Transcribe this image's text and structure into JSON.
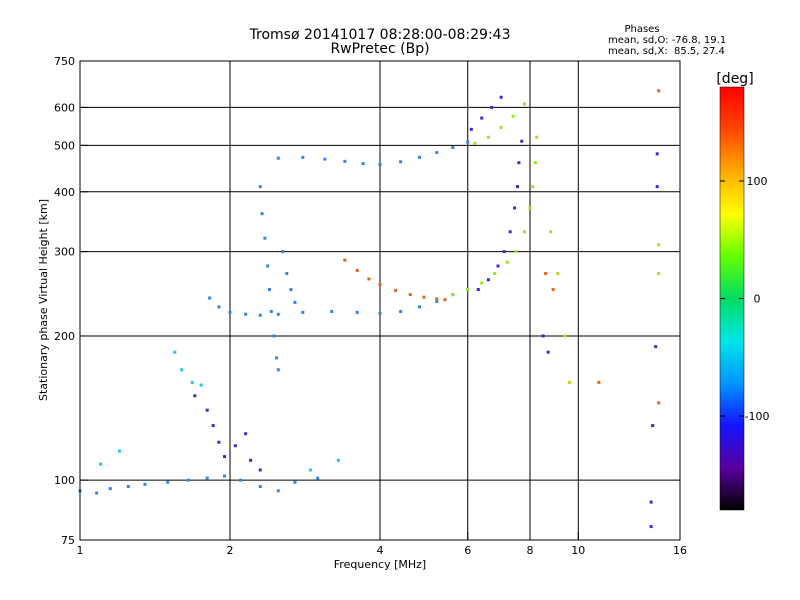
{
  "chart_data": {
    "type": "scatter",
    "title": "Tromsø 20141017 08:28:00-08:29:43",
    "subtitle": "RwPretec (Bp)",
    "xlabel": "Frequency [MHz]",
    "ylabel": "Stationary phase Virtual Height [km]",
    "x_scale": "log2",
    "y_scale": "log",
    "xlim": [
      1,
      16
    ],
    "ylim": [
      75,
      750
    ],
    "x_ticks": [
      "1",
      "2",
      "4",
      "6",
      "8",
      "10",
      "16"
    ],
    "y_ticks": [
      "75",
      "100",
      "200",
      "300",
      "400",
      "500",
      "600",
      "750"
    ],
    "grid": true,
    "stats_lines": [
      "Phases",
      "mean, sd,O: -76.8, 19.1",
      "mean, sd,X:  85.5, 27.4"
    ],
    "colorbar": {
      "label": "[deg]",
      "range": [
        -180,
        180
      ],
      "ticks": [
        "100",
        "0",
        "-100"
      ],
      "colors": [
        "#000000",
        "#5a00a0",
        "#1414ff",
        "#0096ff",
        "#00e6e6",
        "#00dc64",
        "#64ff00",
        "#ffff00",
        "#ffaa00",
        "#ff4600",
        "#ff0000"
      ]
    },
    "series": [
      {
        "name": "",
        "color": "#2f86e6",
        "points": [
          [
            1.0,
            95
          ],
          [
            1.08,
            94
          ],
          [
            1.15,
            96
          ],
          [
            1.25,
            97
          ],
          [
            1.35,
            98
          ],
          [
            1.5,
            99
          ],
          [
            1.65,
            100
          ],
          [
            1.8,
            101
          ],
          [
            1.95,
            102
          ],
          [
            2.1,
            100
          ],
          [
            2.3,
            97
          ],
          [
            2.5,
            95
          ],
          [
            2.7,
            99
          ],
          [
            3.0,
            101
          ]
        ]
      },
      {
        "name": "",
        "color": "#2f86e6",
        "points": [
          [
            1.82,
            240
          ],
          [
            1.9,
            230
          ],
          [
            2.0,
            224
          ],
          [
            2.15,
            222
          ],
          [
            2.3,
            221
          ],
          [
            2.5,
            222
          ],
          [
            2.8,
            224
          ],
          [
            3.2,
            225
          ],
          [
            3.6,
            224
          ],
          [
            4.0,
            223
          ],
          [
            4.4,
            225
          ],
          [
            4.8,
            230
          ],
          [
            5.2,
            236
          ],
          [
            5.6,
            244
          ]
        ]
      },
      {
        "name": "",
        "color": "#e0651e",
        "points": [
          [
            3.4,
            288
          ],
          [
            3.6,
            274
          ],
          [
            3.8,
            263
          ],
          [
            4.0,
            256
          ],
          [
            4.3,
            249
          ],
          [
            4.6,
            244
          ],
          [
            4.9,
            241
          ],
          [
            5.2,
            239
          ],
          [
            5.4,
            238
          ]
        ]
      },
      {
        "name": "",
        "color": "#9be61e",
        "points": [
          [
            5.6,
            244
          ],
          [
            6.0,
            250
          ],
          [
            6.4,
            258
          ],
          [
            6.8,
            270
          ],
          [
            7.2,
            285
          ],
          [
            7.5,
            300
          ],
          [
            7.8,
            330
          ],
          [
            8.0,
            370
          ],
          [
            8.1,
            410
          ],
          [
            8.2,
            460
          ],
          [
            8.25,
            520
          ]
        ]
      },
      {
        "name": "",
        "color": "#3c2ad2",
        "points": [
          [
            6.3,
            250
          ],
          [
            6.6,
            262
          ],
          [
            6.9,
            280
          ],
          [
            7.1,
            300
          ],
          [
            7.3,
            330
          ],
          [
            7.45,
            370
          ],
          [
            7.55,
            410
          ],
          [
            7.6,
            460
          ],
          [
            7.7,
            510
          ]
        ]
      },
      {
        "name": "",
        "color": "#2f86e6",
        "points": [
          [
            2.5,
            470
          ],
          [
            2.8,
            472
          ],
          [
            3.1,
            468
          ],
          [
            3.4,
            463
          ],
          [
            3.7,
            458
          ],
          [
            4.0,
            456
          ],
          [
            4.4,
            462
          ],
          [
            4.8,
            472
          ],
          [
            5.2,
            483
          ],
          [
            5.6,
            495
          ],
          [
            6.0,
            508
          ]
        ]
      },
      {
        "name": "",
        "color": "#9be61e",
        "points": [
          [
            6.2,
            505
          ],
          [
            6.6,
            520
          ],
          [
            7.0,
            545
          ],
          [
            7.4,
            575
          ],
          [
            7.8,
            610
          ]
        ]
      },
      {
        "name": "",
        "color": "#3c2ad2",
        "points": [
          [
            6.1,
            540
          ],
          [
            6.4,
            570
          ],
          [
            6.7,
            600
          ],
          [
            7.0,
            630
          ]
        ]
      },
      {
        "name": "",
        "color": "#2f86e6",
        "points": [
          [
            2.3,
            410
          ],
          [
            2.32,
            360
          ],
          [
            2.35,
            320
          ],
          [
            2.38,
            280
          ],
          [
            2.4,
            250
          ],
          [
            2.42,
            225
          ],
          [
            2.45,
            200
          ],
          [
            2.48,
            180
          ],
          [
            2.5,
            170
          ],
          [
            2.55,
            300
          ],
          [
            2.6,
            270
          ],
          [
            2.65,
            250
          ],
          [
            2.7,
            235
          ]
        ]
      },
      {
        "name": "",
        "color": "#3c2ad2",
        "points": [
          [
            1.7,
            150
          ],
          [
            1.8,
            140
          ],
          [
            1.85,
            130
          ],
          [
            1.9,
            120
          ],
          [
            1.95,
            112
          ],
          [
            2.05,
            118
          ],
          [
            2.15,
            125
          ],
          [
            2.2,
            110
          ],
          [
            2.3,
            105
          ]
        ]
      },
      {
        "name": "",
        "color": "#1ec8e6",
        "points": [
          [
            1.55,
            185
          ],
          [
            1.6,
            170
          ],
          [
            1.68,
            160
          ],
          [
            1.75,
            158
          ],
          [
            1.1,
            108
          ],
          [
            1.2,
            115
          ],
          [
            2.9,
            105
          ],
          [
            3.3,
            110
          ]
        ]
      },
      {
        "name": "",
        "color": "#e0651e",
        "points": [
          [
            8.6,
            270
          ],
          [
            8.9,
            250
          ],
          [
            11.0,
            160
          ],
          [
            14.5,
            650
          ],
          [
            14.5,
            145
          ]
        ]
      },
      {
        "name": "",
        "color": "#3c2ad2",
        "points": [
          [
            8.5,
            200
          ],
          [
            8.7,
            185
          ],
          [
            14.4,
            480
          ],
          [
            14.4,
            410
          ],
          [
            14.3,
            190
          ],
          [
            14.1,
            130
          ],
          [
            14.0,
            90
          ],
          [
            14.0,
            80
          ]
        ]
      },
      {
        "name": "",
        "color": "#c8d21e",
        "points": [
          [
            8.8,
            330
          ],
          [
            9.1,
            270
          ],
          [
            9.4,
            200
          ],
          [
            9.6,
            160
          ],
          [
            14.5,
            310
          ],
          [
            14.5,
            270
          ]
        ]
      }
    ]
  }
}
